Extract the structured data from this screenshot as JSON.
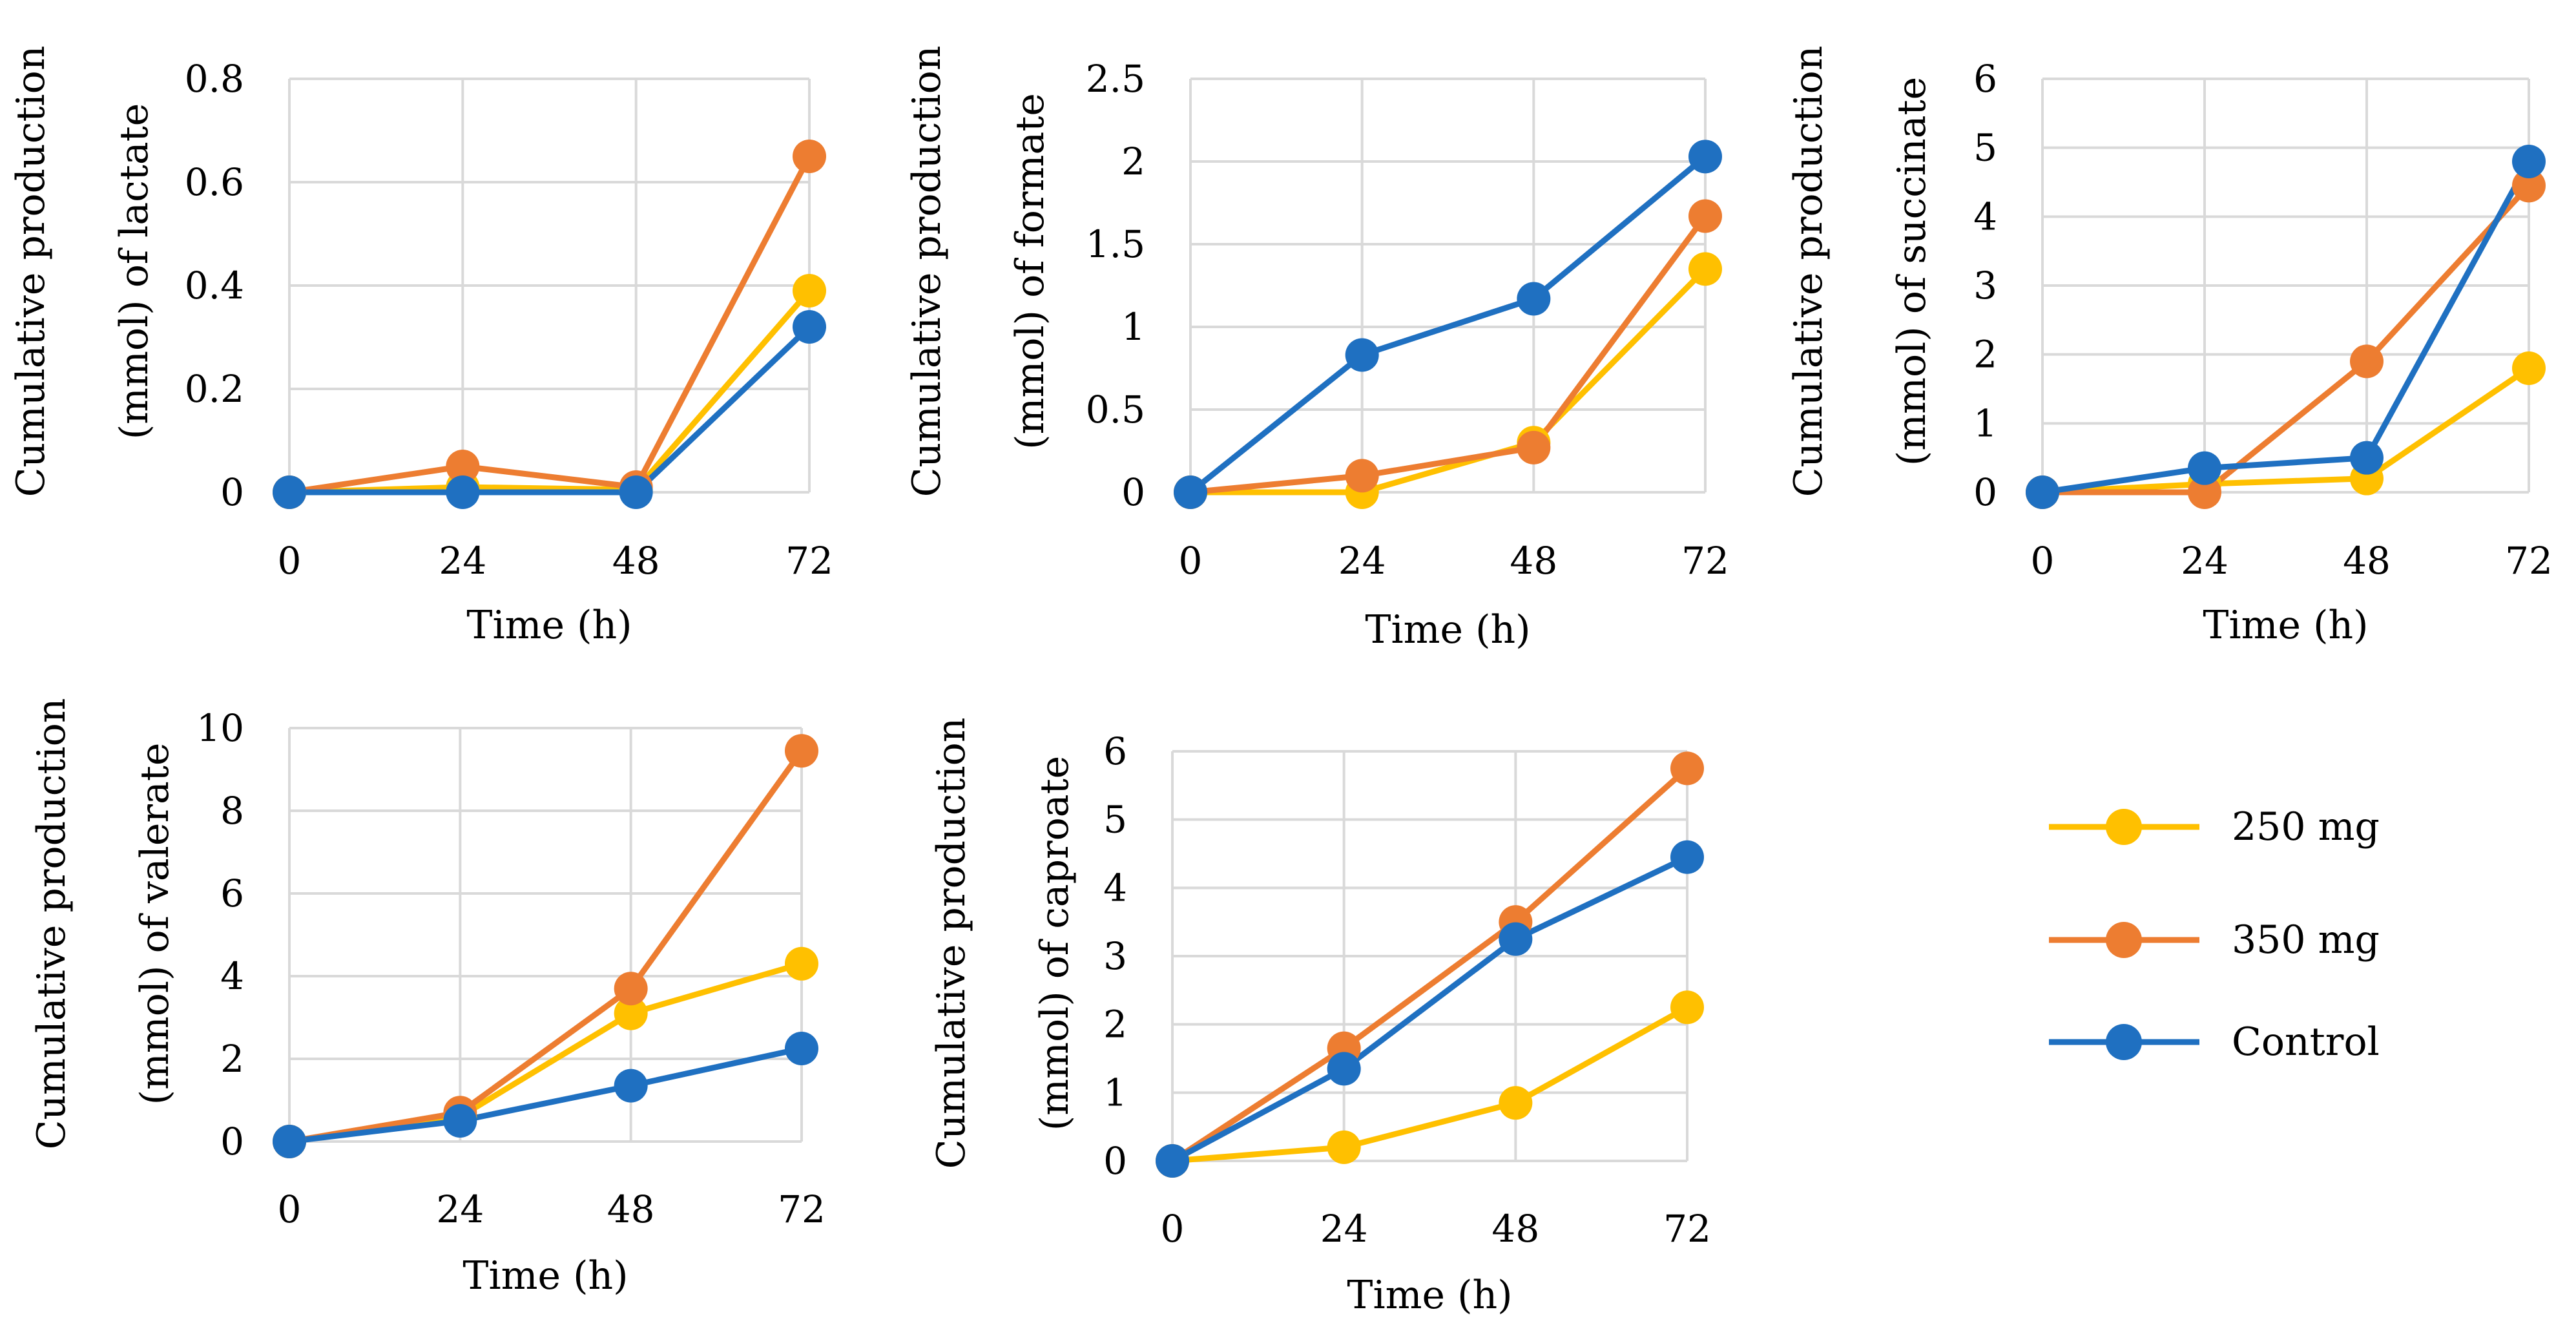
{
  "chart_data": [
    {
      "type": "line",
      "title": "",
      "xlabel": "Time (h)",
      "ylabel_line1": "Cumulative production",
      "ylabel_line2": "(mmol) of lactate",
      "x": [
        0,
        24,
        48,
        72
      ],
      "x_ticks": [
        "0",
        "24",
        "48",
        "72"
      ],
      "ylim": [
        0,
        0.8
      ],
      "y_ticks": [
        "0",
        "0.2",
        "0.4",
        "0.6",
        "0.8"
      ],
      "series": [
        {
          "name": "250 mg",
          "values": [
            0,
            0.01,
            0.005,
            0.39
          ]
        },
        {
          "name": "350 mg",
          "values": [
            0,
            0.05,
            0.01,
            0.65
          ]
        },
        {
          "name": "Control",
          "values": [
            0,
            0,
            0,
            0.32
          ]
        }
      ]
    },
    {
      "type": "line",
      "title": "",
      "xlabel": "Time (h)",
      "ylabel_line1": "Cumulative production",
      "ylabel_line2": "(mmol) of formate",
      "x": [
        0,
        24,
        48,
        72
      ],
      "x_ticks": [
        "0",
        "24",
        "48",
        "72"
      ],
      "ylim": [
        0,
        2.5
      ],
      "y_ticks": [
        "0",
        "0.5",
        "1",
        "1.5",
        "2",
        "2.5"
      ],
      "series": [
        {
          "name": "250 mg",
          "values": [
            0,
            0,
            0.3,
            1.35
          ]
        },
        {
          "name": "350 mg",
          "values": [
            0,
            0.1,
            0.27,
            1.67
          ]
        },
        {
          "name": "Control",
          "values": [
            0,
            0.83,
            1.17,
            2.03
          ]
        }
      ]
    },
    {
      "type": "line",
      "title": "",
      "xlabel": "Time (h)",
      "ylabel_line1": "Cumulative production",
      "ylabel_line2": "(mmol) of succinate",
      "x": [
        0,
        24,
        48,
        72
      ],
      "x_ticks": [
        "0",
        "24",
        "48",
        "72"
      ],
      "ylim": [
        0,
        6
      ],
      "y_ticks": [
        "0",
        "1",
        "2",
        "3",
        "4",
        "5",
        "6"
      ],
      "series": [
        {
          "name": "250 mg",
          "values": [
            0,
            0.12,
            0.2,
            1.8
          ]
        },
        {
          "name": "350 mg",
          "values": [
            0,
            0,
            1.9,
            4.45
          ]
        },
        {
          "name": "Control",
          "values": [
            0,
            0.35,
            0.5,
            4.8
          ]
        }
      ]
    },
    {
      "type": "line",
      "title": "",
      "xlabel": "Time (h)",
      "ylabel_line1": "Cumulative production",
      "ylabel_line2": "(mmol) of valerate",
      "x": [
        0,
        24,
        48,
        72
      ],
      "x_ticks": [
        "0",
        "24",
        "48",
        "72"
      ],
      "ylim": [
        0,
        10
      ],
      "y_ticks": [
        "0",
        "2",
        "4",
        "6",
        "8",
        "10"
      ],
      "series": [
        {
          "name": "250 mg",
          "values": [
            0,
            0.6,
            3.1,
            4.3
          ]
        },
        {
          "name": "350 mg",
          "values": [
            0,
            0.7,
            3.7,
            9.45
          ]
        },
        {
          "name": "Control",
          "values": [
            0,
            0.5,
            1.35,
            2.25
          ]
        }
      ]
    },
    {
      "type": "line",
      "title": "",
      "xlabel": "Time (h)",
      "ylabel_line1": "Cumulative production",
      "ylabel_line2": "(mmol) of caproate",
      "x": [
        0,
        24,
        48,
        72
      ],
      "x_ticks": [
        "0",
        "24",
        "48",
        "72"
      ],
      "ylim": [
        0,
        6
      ],
      "y_ticks": [
        "0",
        "1",
        "2",
        "3",
        "4",
        "5",
        "6"
      ],
      "series": [
        {
          "name": "250 mg",
          "values": [
            0,
            0.2,
            0.85,
            2.25
          ]
        },
        {
          "name": "350 mg",
          "values": [
            0,
            1.65,
            3.5,
            5.75
          ]
        },
        {
          "name": "Control",
          "values": [
            0,
            1.35,
            3.25,
            4.45
          ]
        }
      ]
    }
  ],
  "legend": {
    "position": "right",
    "items": [
      {
        "label": "250 mg",
        "color": "#FFC000"
      },
      {
        "label": "350 mg",
        "color": "#ED7D31"
      },
      {
        "label": "Control",
        "color": "#1F70C1"
      }
    ]
  },
  "colors": {
    "250 mg": "#FFC000",
    "350 mg": "#ED7D31",
    "Control": "#1F70C1",
    "grid": "#d9d9d9"
  }
}
